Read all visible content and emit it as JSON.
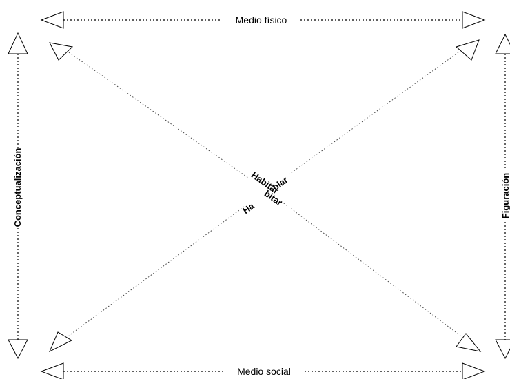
{
  "labels": {
    "top": "Medio físico",
    "bottom": "Medio social",
    "left": "Conceptualización",
    "right": "Figuración",
    "center_upper_left": "Habitar",
    "center_upper_right": "blar",
    "center_lower_left": "Ha",
    "center_lower_right": "bitar"
  },
  "colors": {
    "line": "#000000",
    "diagonal": "#444444",
    "background": "#ffffff"
  }
}
